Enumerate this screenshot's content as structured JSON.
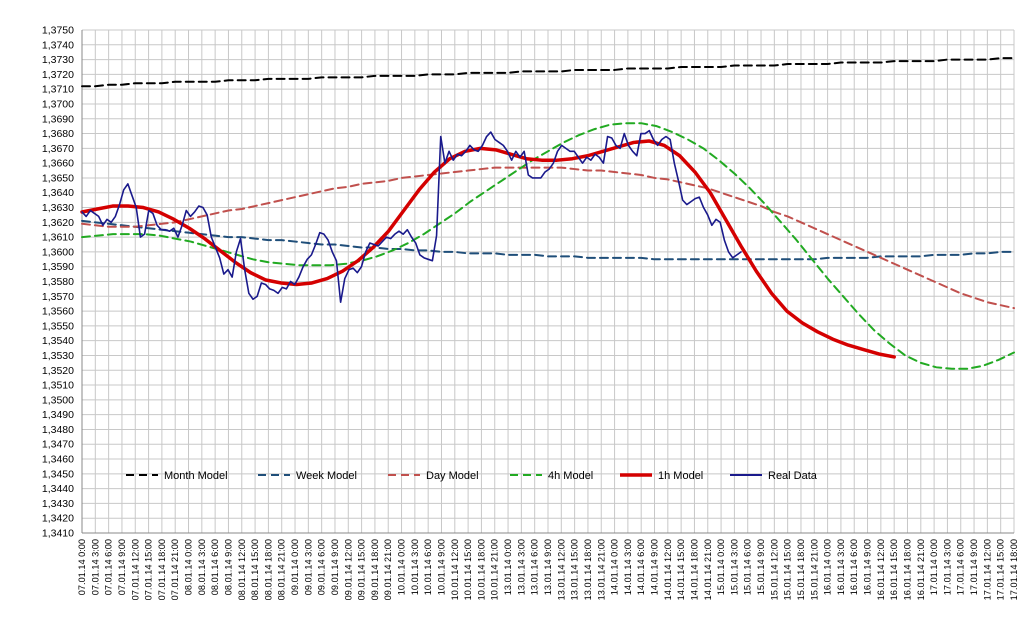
{
  "chart_data": {
    "type": "line",
    "title": "",
    "xlabel": "",
    "ylabel": "",
    "ylim": [
      1.341,
      1.375
    ],
    "ytick_step": 0.001,
    "grid": true,
    "legend_position": "bottom-inside",
    "x_ticks": [
      "07.01.14 0:00",
      "07.01.14 3:00",
      "07.01.14 6:00",
      "07.01.14 9:00",
      "07.01.14 12:00",
      "07.01.14 15:00",
      "07.01.14 18:00",
      "07.01.14 21:00",
      "08.01.14 0:00",
      "08.01.14 3:00",
      "08.01.14 6:00",
      "08.01.14 9:00",
      "08.01.14 12:00",
      "08.01.14 15:00",
      "08.01.14 18:00",
      "08.01.14 21:00",
      "09.01.14 0:00",
      "09.01.14 3:00",
      "09.01.14 6:00",
      "09.01.14 9:00",
      "09.01.14 12:00",
      "09.01.14 15:00",
      "09.01.14 18:00",
      "09.01.14 21:00",
      "10.01.14 0:00",
      "10.01.14 3:00",
      "10.01.14 6:00",
      "10.01.14 9:00",
      "10.01.14 12:00",
      "10.01.14 15:00",
      "10.01.14 18:00",
      "10.01.14 21:00",
      "13.01.14 0:00",
      "13.01.14 3:00",
      "13.01.14 6:00",
      "13.01.14 9:00",
      "13.01.14 12:00",
      "13.01.14 15:00",
      "13.01.14 18:00",
      "13.01.14 21:00",
      "14.01.14 0:00",
      "14.01.14 3:00",
      "14.01.14 6:00",
      "14.01.14 9:00",
      "14.01.14 12:00",
      "14.01.14 15:00",
      "14.01.14 18:00",
      "14.01.14 21:00",
      "15.01.14 0:00",
      "15.01.14 3:00",
      "15.01.14 6:00",
      "15.01.14 9:00",
      "15.01.14 12:00",
      "15.01.14 15:00",
      "15.01.14 18:00",
      "15.01.14 21:00",
      "16.01.14 0:00",
      "16.01.14 3:00",
      "16.01.14 6:00",
      "16.01.14 9:00",
      "16.01.14 12:00",
      "16.01.14 15:00",
      "16.01.14 18:00",
      "16.01.14 21:00",
      "17.01.14 0:00",
      "17.01.14 3:00",
      "17.01.14 6:00",
      "17.01.14 9:00",
      "17.01.14 12:00",
      "17.01.14 15:00",
      "17.01.14 18:00"
    ],
    "series": [
      {
        "name": "Month Model",
        "color": "#000000",
        "dash": "dash",
        "width": 2,
        "values": [
          1.3712,
          1.3712,
          1.3713,
          1.3713,
          1.3714,
          1.3714,
          1.3714,
          1.3715,
          1.3715,
          1.3715,
          1.3715,
          1.3716,
          1.3716,
          1.3716,
          1.3717,
          1.3717,
          1.3717,
          1.3717,
          1.3718,
          1.3718,
          1.3718,
          1.3718,
          1.3719,
          1.3719,
          1.3719,
          1.3719,
          1.372,
          1.372,
          1.372,
          1.3721,
          1.3721,
          1.3721,
          1.3721,
          1.3722,
          1.3722,
          1.3722,
          1.3722,
          1.3723,
          1.3723,
          1.3723,
          1.3723,
          1.3724,
          1.3724,
          1.3724,
          1.3724,
          1.3725,
          1.3725,
          1.3725,
          1.3725,
          1.3726,
          1.3726,
          1.3726,
          1.3726,
          1.3727,
          1.3727,
          1.3727,
          1.3727,
          1.3728,
          1.3728,
          1.3728,
          1.3728,
          1.3729,
          1.3729,
          1.3729,
          1.3729,
          1.373,
          1.373,
          1.373,
          1.373,
          1.3731,
          1.3731
        ]
      },
      {
        "name": "Week Model",
        "color": "#1F4E79",
        "dash": "dash",
        "width": 2,
        "values": [
          1.3621,
          1.362,
          1.3619,
          1.3618,
          1.3617,
          1.3616,
          1.3615,
          1.3614,
          1.3613,
          1.3612,
          1.3611,
          1.361,
          1.361,
          1.3609,
          1.3608,
          1.3608,
          1.3607,
          1.3606,
          1.3605,
          1.3605,
          1.3604,
          1.3603,
          1.3603,
          1.3602,
          1.3602,
          1.3601,
          1.3601,
          1.36,
          1.36,
          1.3599,
          1.3599,
          1.3599,
          1.3598,
          1.3598,
          1.3598,
          1.3597,
          1.3597,
          1.3597,
          1.3596,
          1.3596,
          1.3596,
          1.3596,
          1.3596,
          1.3595,
          1.3595,
          1.3595,
          1.3595,
          1.3595,
          1.3595,
          1.3595,
          1.3595,
          1.3595,
          1.3595,
          1.3595,
          1.3595,
          1.3595,
          1.3596,
          1.3596,
          1.3596,
          1.3596,
          1.3597,
          1.3597,
          1.3597,
          1.3597,
          1.3598,
          1.3598,
          1.3598,
          1.3599,
          1.3599,
          1.36,
          1.36
        ]
      },
      {
        "name": "Day Model",
        "color": "#C0504D",
        "dash": "dash",
        "width": 2,
        "values": [
          1.3619,
          1.3618,
          1.3617,
          1.3617,
          1.3617,
          1.3618,
          1.3619,
          1.362,
          1.3622,
          1.3624,
          1.3626,
          1.3628,
          1.3629,
          1.3631,
          1.3633,
          1.3635,
          1.3637,
          1.3639,
          1.3641,
          1.3643,
          1.3644,
          1.3646,
          1.3647,
          1.3648,
          1.365,
          1.3651,
          1.3652,
          1.3653,
          1.3654,
          1.3655,
          1.3656,
          1.3657,
          1.3657,
          1.3657,
          1.3657,
          1.3657,
          1.3657,
          1.3656,
          1.3655,
          1.3655,
          1.3654,
          1.3653,
          1.3652,
          1.365,
          1.3649,
          1.3647,
          1.3645,
          1.3643,
          1.364,
          1.3637,
          1.3634,
          1.3631,
          1.3627,
          1.3624,
          1.362,
          1.3616,
          1.3612,
          1.3608,
          1.3604,
          1.36,
          1.3596,
          1.3592,
          1.3588,
          1.3584,
          1.358,
          1.3576,
          1.3572,
          1.3569,
          1.3566,
          1.3564,
          1.3562
        ]
      },
      {
        "name": "4h Model",
        "color": "#22AA22",
        "dash": "dash",
        "width": 2,
        "values": [
          1.361,
          1.3611,
          1.3612,
          1.3612,
          1.3612,
          1.3611,
          1.3609,
          1.3607,
          1.3604,
          1.3601,
          1.3598,
          1.3595,
          1.3593,
          1.3592,
          1.3591,
          1.3591,
          1.3591,
          1.3592,
          1.3594,
          1.3597,
          1.3601,
          1.3606,
          1.3612,
          1.3619,
          1.3626,
          1.3634,
          1.3641,
          1.3648,
          1.3655,
          1.3662,
          1.3668,
          1.3674,
          1.3679,
          1.3683,
          1.3686,
          1.3687,
          1.3687,
          1.3685,
          1.3681,
          1.3676,
          1.367,
          1.3662,
          1.3653,
          1.3643,
          1.3632,
          1.362,
          1.3608,
          1.3595,
          1.3582,
          1.357,
          1.3558,
          1.3547,
          1.3538,
          1.353,
          1.3525,
          1.3522,
          1.3521,
          1.3521,
          1.3523,
          1.3527,
          1.3532
        ]
      },
      {
        "name": "1h Model",
        "color": "#D40000",
        "dash": "solid",
        "width": 3.5,
        "values": [
          1.3627,
          1.3629,
          1.3631,
          1.3631,
          1.363,
          1.3627,
          1.3622,
          1.3616,
          1.3609,
          1.3601,
          1.3593,
          1.3586,
          1.3581,
          1.3579,
          1.3578,
          1.3579,
          1.3582,
          1.3587,
          1.3594,
          1.3603,
          1.3614,
          1.3628,
          1.3642,
          1.3654,
          1.3663,
          1.3668,
          1.367,
          1.3669,
          1.3666,
          1.3663,
          1.3662,
          1.3662,
          1.3663,
          1.3665,
          1.3668,
          1.3671,
          1.3674,
          1.3675,
          1.3672,
          1.3665,
          1.3654,
          1.364,
          1.3622,
          1.3604,
          1.3587,
          1.3572,
          1.356,
          1.3552,
          1.3546,
          1.3541,
          1.3537,
          1.3534,
          1.3531,
          1.3529
        ]
      },
      {
        "name": "Real Data",
        "color": "#1A1A8C",
        "dash": "solid",
        "width": 1.6,
        "values": [
          1.3627,
          1.3624,
          1.3628,
          1.3626,
          1.3624,
          1.3618,
          1.3622,
          1.362,
          1.3624,
          1.3632,
          1.3642,
          1.3646,
          1.3638,
          1.363,
          1.361,
          1.3612,
          1.3628,
          1.3626,
          1.3618,
          1.3615,
          1.3615,
          1.3614,
          1.3616,
          1.361,
          1.3618,
          1.3628,
          1.3624,
          1.3627,
          1.3631,
          1.363,
          1.3625,
          1.361,
          1.3603,
          1.3596,
          1.3585,
          1.3588,
          1.3583,
          1.36,
          1.3609,
          1.3588,
          1.3572,
          1.3568,
          1.357,
          1.3579,
          1.3578,
          1.3575,
          1.3574,
          1.3572,
          1.3576,
          1.3575,
          1.358,
          1.3578,
          1.3583,
          1.359,
          1.3595,
          1.3598,
          1.3605,
          1.3613,
          1.3612,
          1.3608,
          1.36,
          1.3594,
          1.3566,
          1.3582,
          1.3588,
          1.3589,
          1.3586,
          1.359,
          1.36,
          1.3606,
          1.3605,
          1.3604,
          1.3607,
          1.361,
          1.3609,
          1.3612,
          1.3614,
          1.3612,
          1.3615,
          1.361,
          1.3606,
          1.3598,
          1.3596,
          1.3595,
          1.3594,
          1.3611,
          1.3678,
          1.366,
          1.3668,
          1.3662,
          1.3666,
          1.3665,
          1.3668,
          1.3672,
          1.3669,
          1.3668,
          1.3672,
          1.3678,
          1.3681,
          1.3676,
          1.3674,
          1.3672,
          1.3668,
          1.3662,
          1.3668,
          1.3664,
          1.3668,
          1.3652,
          1.365,
          1.365,
          1.365,
          1.3654,
          1.3656,
          1.366,
          1.3668,
          1.3672,
          1.367,
          1.3668,
          1.3668,
          1.3664,
          1.366,
          1.3664,
          1.3662,
          1.3666,
          1.3664,
          1.366,
          1.3678,
          1.3677,
          1.3672,
          1.367,
          1.368,
          1.3672,
          1.3668,
          1.3665,
          1.368,
          1.368,
          1.3682,
          1.3676,
          1.3672,
          1.3676,
          1.3678,
          1.3676,
          1.366,
          1.3648,
          1.3635,
          1.3632,
          1.3634,
          1.3636,
          1.3637,
          1.363,
          1.3625,
          1.3618,
          1.3622,
          1.362,
          1.3608,
          1.36,
          1.3596,
          1.3598,
          1.36
        ]
      }
    ]
  }
}
